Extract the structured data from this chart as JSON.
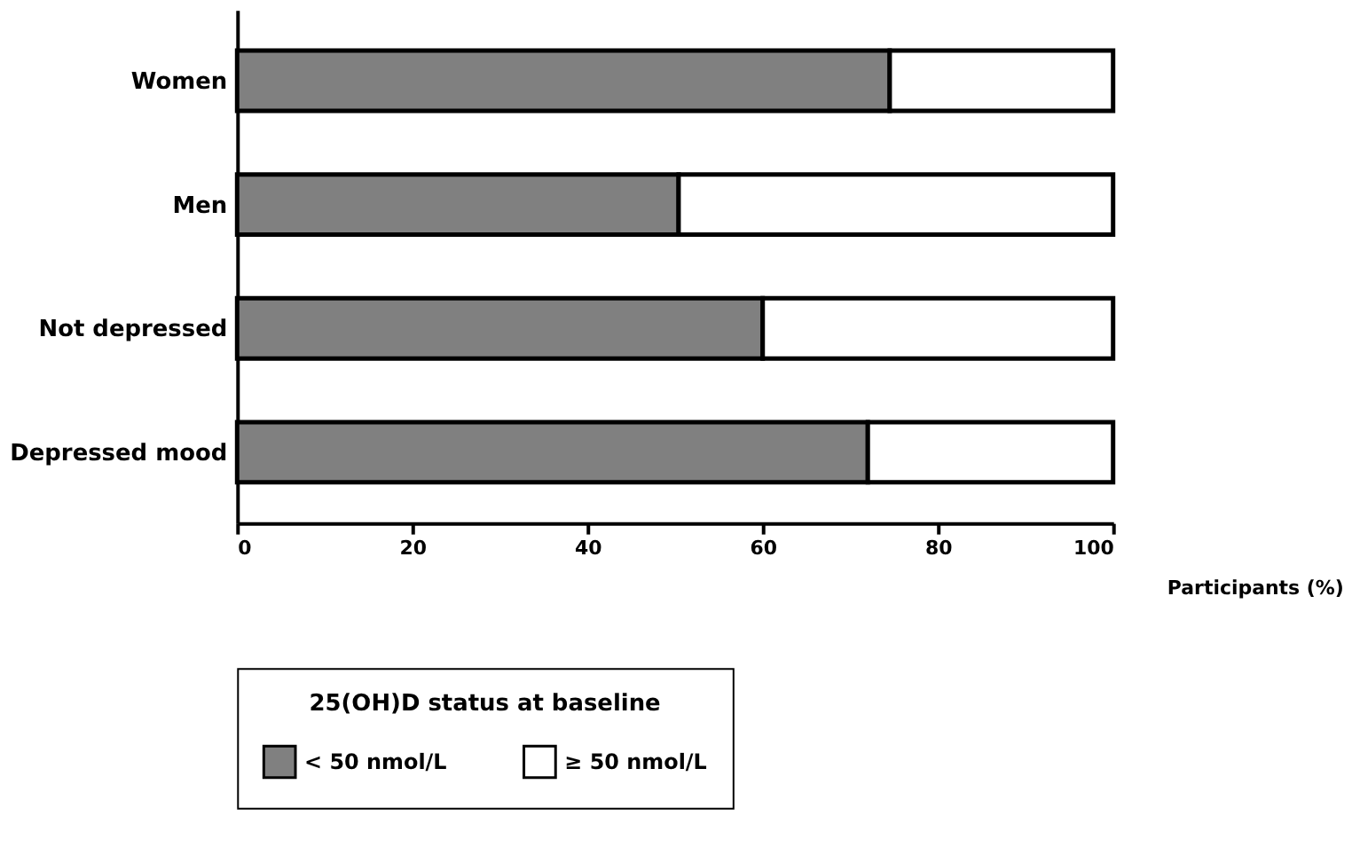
{
  "chart_data": {
    "type": "bar",
    "orientation": "horizontal",
    "stacked": true,
    "categories": [
      "Women",
      "Men",
      "Not depressed",
      "Depressed mood"
    ],
    "series": [
      {
        "name": "< 50 nmol/L",
        "color": "#808080",
        "values": [
          74.5,
          50.4,
          60,
          72
        ]
      },
      {
        "name": "≥ 50 nmol/L",
        "color": "#ffffff",
        "values": [
          25.5,
          49.6,
          40,
          28
        ]
      }
    ],
    "xlabel": "Participants (%)",
    "legend_title": "25(OH)D status at baseline",
    "xlim": [
      0,
      100
    ],
    "xticks": [
      0,
      20,
      40,
      60,
      80,
      100
    ],
    "grid": false,
    "legend": "bottom"
  }
}
